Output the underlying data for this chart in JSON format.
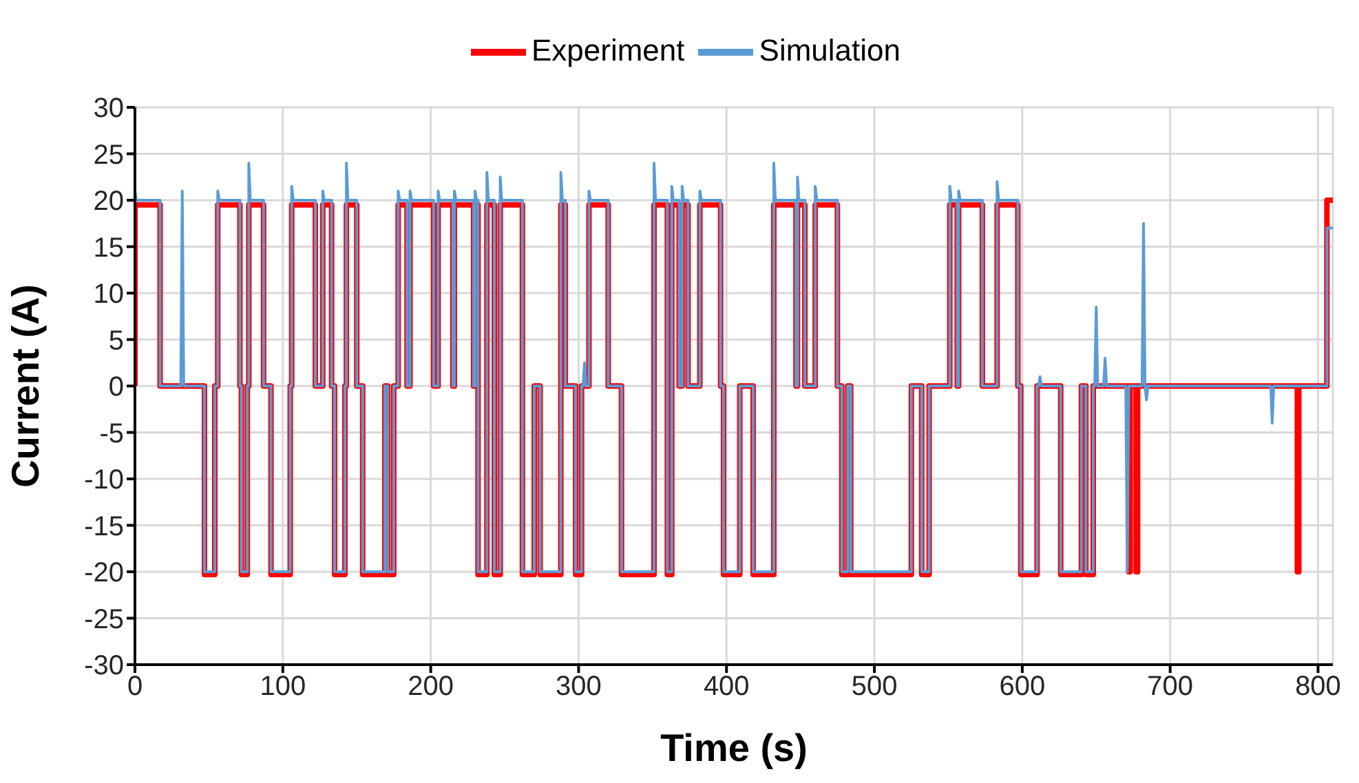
{
  "chart_data": {
    "type": "line",
    "xlabel": "Time (s)",
    "ylabel": "Current (A)",
    "xlim": [
      0,
      810
    ],
    "xticks": [
      0,
      100,
      200,
      300,
      400,
      500,
      600,
      700,
      800
    ],
    "ylim": [
      -30,
      30
    ],
    "yticks": [
      -30,
      -25,
      -20,
      -15,
      -10,
      -5,
      0,
      5,
      10,
      15,
      20,
      25,
      30
    ],
    "grid": true,
    "legend": "top",
    "marker": "none",
    "line_style": "solid",
    "series": [
      {
        "name": "Experiment",
        "color": "#ff0000",
        "x": [
          0,
          0,
          17,
          17,
          47,
          47,
          54,
          54,
          56,
          56,
          71,
          71,
          72,
          72,
          76,
          76,
          77,
          77,
          87,
          87,
          92,
          92,
          105,
          105,
          106,
          106,
          122,
          122,
          127,
          127,
          133,
          133,
          135,
          135,
          142,
          142,
          143,
          143,
          150,
          150,
          154,
          154,
          169,
          169,
          171,
          171,
          175,
          175,
          178,
          178,
          184,
          184,
          186,
          186,
          202,
          202,
          205,
          205,
          215,
          215,
          216,
          216,
          229,
          229,
          230,
          230,
          232,
          232,
          232,
          232,
          238,
          238,
          238,
          238,
          243,
          243,
          243,
          243,
          247,
          247,
          247,
          247,
          262,
          262,
          262,
          262,
          270,
          270,
          274,
          274,
          288,
          288,
          288,
          288,
          291,
          291,
          298,
          298,
          302,
          302,
          307,
          307,
          320,
          320,
          329,
          329,
          351,
          351,
          351,
          351,
          360,
          360,
          360,
          360,
          363,
          363,
          363,
          363,
          368,
          368,
          370,
          370,
          374,
          374,
          382,
          382,
          396,
          396,
          398,
          398,
          409,
          409,
          418,
          418,
          432,
          432,
          432,
          432,
          447,
          447,
          448,
          448,
          453,
          453,
          460,
          460,
          475,
          475,
          478,
          478,
          482,
          482,
          484,
          484,
          525,
          525,
          532,
          532,
          537,
          537,
          551,
          551,
          556,
          556,
          557,
          557,
          573,
          573,
          583,
          583,
          597,
          597,
          599,
          599,
          610,
          610,
          626,
          626,
          640,
          640,
          643,
          643,
          648,
          648,
          672,
          672,
          673,
          673,
          677,
          677,
          678,
          678,
          786,
          786,
          787,
          787,
          806,
          806,
          810
        ],
        "values": [
          0,
          19.5,
          19.5,
          0,
          0,
          -20.3,
          -20.3,
          0,
          0,
          19.5,
          19.5,
          0,
          0,
          -20.3,
          -20.3,
          0,
          0,
          19.5,
          19.5,
          0,
          0,
          -20.3,
          -20.3,
          0,
          0,
          19.5,
          19.5,
          0,
          0,
          19.5,
          19.5,
          0,
          0,
          -20.3,
          -20.3,
          0,
          0,
          19.5,
          19.5,
          0,
          0,
          -20.3,
          -20.3,
          0,
          0,
          -20.3,
          -20.3,
          0,
          0,
          19.5,
          19.5,
          0,
          0,
          19.5,
          19.5,
          0,
          0,
          19.5,
          19.5,
          0,
          0,
          19.5,
          19.5,
          0,
          0,
          19.5,
          19.5,
          0,
          0,
          -20.3,
          -20.3,
          0,
          0,
          19.5,
          19.5,
          0,
          0,
          -20.3,
          -20.3,
          0,
          0,
          19.5,
          19.5,
          0,
          0,
          -20.3,
          -20.3,
          0,
          0,
          -20.3,
          -20.3,
          0,
          0,
          19.5,
          19.5,
          0,
          0,
          -20.3,
          -20.3,
          0,
          0,
          19.5,
          19.5,
          0,
          0,
          -20.3,
          -20.3,
          0,
          0,
          19.5,
          19.5,
          0,
          0,
          -20.3,
          -20.3,
          0,
          0,
          19.5,
          19.5,
          0,
          0,
          19.5,
          19.5,
          0,
          0,
          19.5,
          19.5,
          0,
          0,
          -20.3,
          -20.3,
          0,
          0,
          -20.3,
          -20.3,
          0,
          0,
          19.5,
          19.5,
          0,
          0,
          19.5,
          19.5,
          0,
          0,
          19.5,
          19.5,
          0,
          0,
          -20.3,
          -20.3,
          0,
          0,
          -20.3,
          -20.3,
          0,
          0,
          -20.3,
          -20.3,
          0,
          0,
          19.5,
          19.5,
          0,
          0,
          19.5,
          19.5,
          0,
          0,
          19.5,
          19.5,
          0,
          0,
          -20.3,
          -20.3,
          0,
          0,
          -20.3,
          -20.3,
          0,
          0,
          -20.3,
          -20.3,
          0,
          0,
          -20,
          -20,
          0,
          0,
          -20,
          -20,
          0,
          0,
          -20,
          -20,
          0,
          0,
          20,
          20
        ]
      },
      {
        "name": "Simulation",
        "color": "#5b9bd5",
        "x": [
          0,
          0,
          1,
          17,
          17,
          31,
          32,
          33,
          47,
          47,
          54,
          54,
          56,
          56,
          57,
          71,
          71,
          72,
          72,
          76,
          76,
          77,
          77,
          78,
          87,
          87,
          92,
          92,
          105,
          105,
          106,
          106,
          107,
          122,
          122,
          127,
          127,
          128,
          133,
          133,
          135,
          135,
          142,
          142,
          143,
          143,
          144,
          150,
          150,
          154,
          154,
          169,
          169,
          171,
          171,
          175,
          175,
          178,
          178,
          179,
          184,
          184,
          186,
          186,
          187,
          202,
          202,
          205,
          205,
          206,
          215,
          215,
          216,
          216,
          217,
          229,
          229,
          230,
          230,
          231,
          232,
          232,
          232,
          232,
          238,
          238,
          238,
          238,
          239,
          243,
          243,
          243,
          243,
          247,
          247,
          247,
          247,
          248,
          262,
          262,
          262,
          262,
          270,
          270,
          274,
          274,
          288,
          288,
          288,
          288,
          289,
          291,
          291,
          298,
          298,
          302,
          302,
          303,
          304,
          305,
          307,
          307,
          308,
          320,
          320,
          329,
          329,
          351,
          351,
          351,
          351,
          352,
          360,
          360,
          360,
          360,
          363,
          363,
          363,
          363,
          364,
          368,
          368,
          370,
          370,
          371,
          374,
          374,
          382,
          382,
          383,
          396,
          396,
          398,
          398,
          409,
          409,
          418,
          418,
          432,
          432,
          432,
          432,
          433,
          447,
          447,
          448,
          448,
          449,
          453,
          453,
          460,
          460,
          461,
          475,
          475,
          478,
          478,
          482,
          482,
          484,
          484,
          525,
          525,
          532,
          532,
          537,
          537,
          551,
          551,
          552,
          556,
          556,
          557,
          557,
          558,
          573,
          573,
          583,
          583,
          584,
          597,
          597,
          599,
          599,
          610,
          610,
          611,
          612,
          613,
          626,
          626,
          640,
          640,
          643,
          643,
          648,
          648,
          649,
          650,
          651,
          655,
          656,
          657,
          670,
          671,
          672,
          681,
          682,
          683,
          684,
          685,
          768,
          769,
          770,
          806,
          806,
          810
        ],
        "values": [
          0,
          21,
          20,
          20,
          0,
          0,
          21,
          0,
          0,
          -20,
          -20,
          0,
          0,
          21,
          20,
          20,
          0,
          0,
          -20,
          -20,
          0,
          0,
          24,
          20,
          20,
          0,
          0,
          -20,
          -20,
          0,
          0,
          21.5,
          20,
          20,
          0,
          0,
          21,
          20,
          20,
          0,
          0,
          -20,
          -20,
          0,
          0,
          24,
          20,
          20,
          0,
          0,
          -20,
          -20,
          0,
          0,
          -20,
          -20,
          0,
          0,
          21,
          20,
          20,
          0,
          0,
          21,
          20,
          20,
          0,
          0,
          21,
          20,
          20,
          0,
          0,
          21,
          20,
          20,
          0,
          0,
          21,
          20,
          20,
          0,
          0,
          -20,
          -20,
          0,
          0,
          23,
          20,
          20,
          0,
          0,
          -20,
          -20,
          0,
          0,
          22.5,
          20,
          20,
          0,
          0,
          -20,
          -20,
          0,
          0,
          -20,
          -20,
          0,
          0,
          23,
          20,
          20,
          0,
          0,
          -20,
          -20,
          0,
          0,
          2.5,
          0,
          0,
          21,
          20,
          20,
          0,
          0,
          -20,
          -20,
          0,
          0,
          24,
          20,
          20,
          0,
          0,
          -20,
          -20,
          0,
          0,
          21.5,
          20,
          20,
          0,
          0,
          21.5,
          20,
          20,
          0,
          0,
          21,
          20,
          20,
          0,
          0,
          -20,
          -20,
          0,
          0,
          -20,
          -20,
          0,
          0,
          24,
          20,
          20,
          0,
          0,
          22.5,
          20,
          20,
          0,
          0,
          21.5,
          20,
          20,
          0,
          0,
          -20,
          -20,
          0,
          0,
          -20,
          -20,
          0,
          0,
          -20,
          -20,
          0,
          0,
          21.5,
          20,
          20,
          0,
          0,
          21,
          20,
          20,
          0,
          0,
          22,
          20,
          20,
          0,
          0,
          -20,
          -20,
          0,
          0,
          1,
          0,
          0,
          -20,
          -20,
          0,
          0,
          -20,
          -20,
          0,
          0,
          8.5,
          0,
          0,
          3,
          0,
          0,
          -20,
          0,
          0,
          17.5,
          0,
          -1.5,
          0,
          0,
          -4,
          0,
          0,
          17,
          17
        ]
      }
    ]
  }
}
